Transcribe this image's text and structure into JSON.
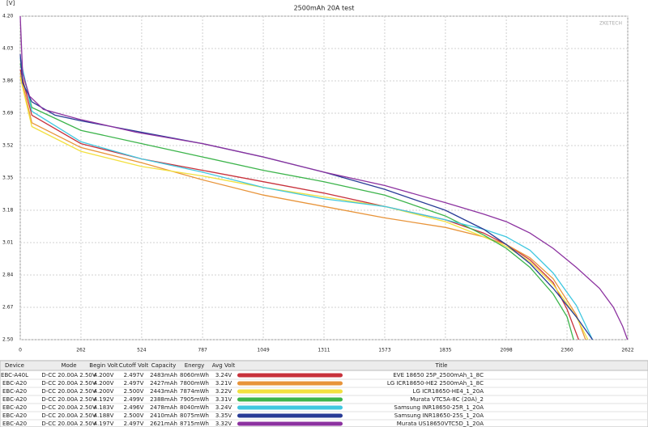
{
  "chart_data": {
    "type": "line",
    "title": "2500mAh 20A test",
    "y_label": "[V]",
    "watermark": "ZKETECH",
    "xlim": [
      0,
      2622
    ],
    "ylim": [
      2.5,
      4.2
    ],
    "xticks": [
      0,
      262,
      524,
      787,
      1049,
      1311,
      1573,
      1835,
      2098,
      2360,
      2622
    ],
    "yticks": [
      {
        "value": 4.2,
        "label": "4.20"
      },
      4.03,
      3.86,
      3.69,
      3.52,
      3.35,
      3.18,
      3.01,
      2.84,
      2.67,
      {
        "value": 2.5,
        "label": "2.50"
      }
    ],
    "grid": true,
    "series": [
      {
        "color": "#c8323c",
        "x": [
          0,
          50,
          262,
          524,
          787,
          1049,
          1311,
          1573,
          1835,
          2000,
          2098,
          2200,
          2300,
          2360,
          2410
        ],
        "values": [
          3.92,
          3.68,
          3.53,
          3.45,
          3.39,
          3.33,
          3.27,
          3.2,
          3.13,
          3.06,
          3.0,
          2.92,
          2.8,
          2.66,
          2.5
        ]
      },
      {
        "color": "#e8943a",
        "x": [
          0,
          50,
          262,
          524,
          787,
          1049,
          1311,
          1573,
          1835,
          2000,
          2098,
          2200,
          2300,
          2400,
          2440
        ],
        "values": [
          3.9,
          3.64,
          3.51,
          3.43,
          3.34,
          3.26,
          3.2,
          3.14,
          3.09,
          3.04,
          3.0,
          2.93,
          2.82,
          2.63,
          2.5
        ]
      },
      {
        "color": "#f2e040",
        "x": [
          0,
          50,
          262,
          524,
          787,
          1049,
          1311,
          1573,
          1835,
          2000,
          2098,
          2200,
          2300,
          2400,
          2450
        ],
        "values": [
          3.88,
          3.62,
          3.49,
          3.41,
          3.36,
          3.3,
          3.25,
          3.2,
          3.12,
          3.04,
          2.99,
          2.91,
          2.79,
          2.62,
          2.5
        ]
      },
      {
        "color": "#3cb44b",
        "x": [
          0,
          50,
          262,
          524,
          787,
          1049,
          1311,
          1573,
          1835,
          2000,
          2098,
          2200,
          2300,
          2360,
          2388
        ],
        "values": [
          3.95,
          3.72,
          3.6,
          3.53,
          3.46,
          3.39,
          3.33,
          3.26,
          3.15,
          3.05,
          2.98,
          2.88,
          2.74,
          2.62,
          2.5
        ]
      },
      {
        "color": "#40c8e0",
        "x": [
          0,
          50,
          262,
          524,
          787,
          1049,
          1311,
          1573,
          1835,
          2000,
          2098,
          2200,
          2300,
          2400,
          2470
        ],
        "values": [
          3.98,
          3.7,
          3.54,
          3.45,
          3.38,
          3.3,
          3.24,
          3.2,
          3.13,
          3.08,
          3.04,
          2.97,
          2.85,
          2.68,
          2.5
        ]
      },
      {
        "color": "#283c96",
        "x": [
          0,
          10,
          50,
          150,
          262,
          524,
          787,
          1049,
          1311,
          1573,
          1835,
          2000,
          2098,
          2200,
          2300,
          2400,
          2470
        ],
        "values": [
          4.0,
          3.85,
          3.75,
          3.68,
          3.65,
          3.59,
          3.53,
          3.46,
          3.38,
          3.29,
          3.18,
          3.08,
          3.0,
          2.9,
          2.77,
          2.62,
          2.5
        ]
      },
      {
        "color": "#8c32a0",
        "x": [
          0,
          10,
          40,
          100,
          250,
          500,
          787,
          1049,
          1311,
          1573,
          1835,
          2000,
          2098,
          2200,
          2300,
          2400,
          2500,
          2560,
          2600,
          2621
        ],
        "values": [
          4.2,
          3.9,
          3.78,
          3.71,
          3.66,
          3.59,
          3.53,
          3.46,
          3.38,
          3.31,
          3.22,
          3.16,
          3.12,
          3.06,
          2.98,
          2.88,
          2.77,
          2.67,
          2.57,
          2.5
        ]
      }
    ]
  },
  "table": {
    "columns": [
      "Device",
      "Mode",
      "Begin Volt",
      "Cutoff Volt",
      "Capacity",
      "Energy",
      "Avg Volt",
      "Title"
    ],
    "rows": [
      [
        "EBC-A40L",
        "D-CC  20.00A  2.50V",
        "4.200V",
        "2.497V",
        "2483mAh",
        "8060mWh",
        "3.24V",
        "EVE 18650 25P_2500mAh_1_8C"
      ],
      [
        "EBC-A20",
        "D-CC  20.00A  2.50V",
        "4.200V",
        "2.497V",
        "2427mAh",
        "7800mWh",
        "3.21V",
        "LG ICR18650-HE2 2500mAh_1_8C"
      ],
      [
        "EBC-A20",
        "D-CC  20.00A  2.50V",
        "4.200V",
        "2.500V",
        "2443mAh",
        "7874mWh",
        "3.22V",
        "LG ICR18650-HE4_1_20A"
      ],
      [
        "EBC-A20",
        "D-CC  20.00A  2.50V",
        "4.192V",
        "2.499V",
        "2388mAh",
        "7905mWh",
        "3.31V",
        "Murata VTC5A-8C (20A)_2"
      ],
      [
        "EBC-A20",
        "D-CC  20.00A  2.50V",
        "4.183V",
        "2.496V",
        "2478mAh",
        "8040mWh",
        "3.24V",
        "Samsung INR18650-25R_1_20A"
      ],
      [
        "EBC-A20",
        "D-CC  20.00A  2.50V",
        "4.188V",
        "2.500V",
        "2410mAh",
        "8075mWh",
        "3.35V",
        "Samsung INR18650-25S_1_20A"
      ],
      [
        "EBC-A20",
        "D-CC  20.00A  2.50V",
        "4.197V",
        "2.497V",
        "2621mAh",
        "8715mWh",
        "3.32V",
        "Murata US18650VTC5D_1_20A"
      ]
    ]
  }
}
